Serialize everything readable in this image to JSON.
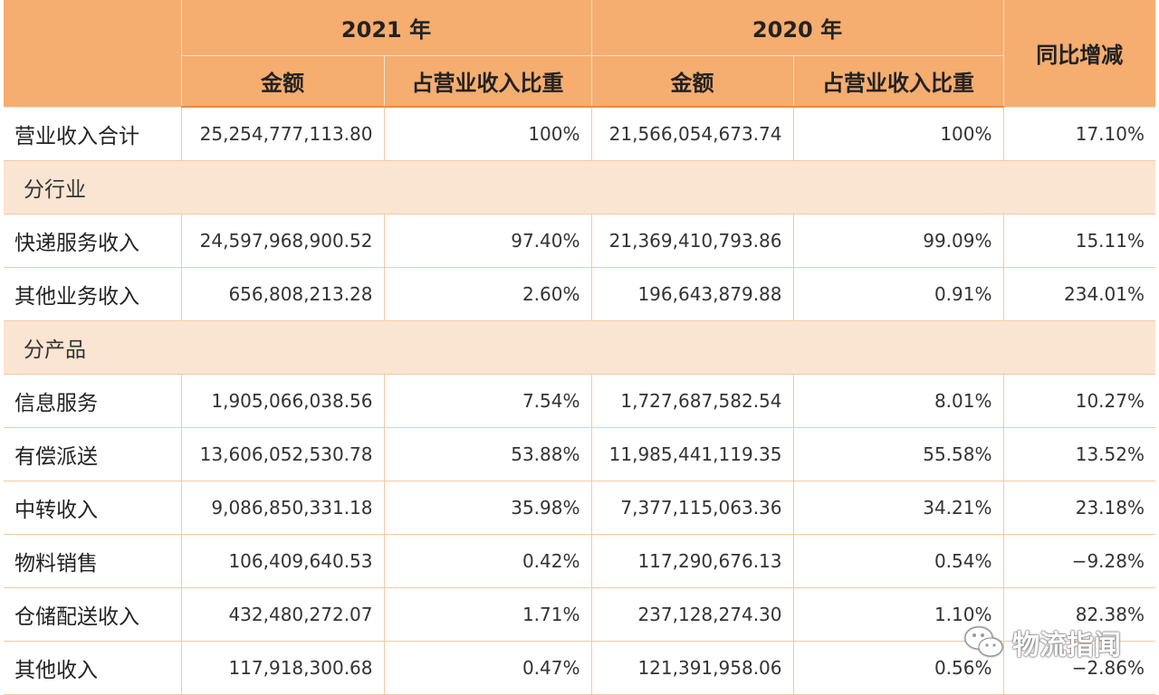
{
  "header": {
    "year_2021": "2021 年",
    "year_2020": "2020 年",
    "yoy": "同比增减",
    "amount": "金额",
    "share": "占营业收入比重"
  },
  "total": {
    "label": "营业收入合计",
    "amt2021": "25,254,777,113.80",
    "pct2021": "100%",
    "amt2020": "21,566,054,673.74",
    "pct2020": "100%",
    "yoy": "17.10%"
  },
  "sections": [
    {
      "title": "分行业",
      "rows": [
        {
          "label": "快递服务收入",
          "amt2021": "24,597,968,900.52",
          "pct2021": "97.40%",
          "amt2020": "21,369,410,793.86",
          "pct2020": "99.09%",
          "yoy": "15.11%"
        },
        {
          "label": "其他业务收入",
          "amt2021": "656,808,213.28",
          "pct2021": "2.60%",
          "amt2020": "196,643,879.88",
          "pct2020": "0.91%",
          "yoy": "234.01%"
        }
      ]
    },
    {
      "title": "分产品",
      "rows": [
        {
          "label": "信息服务",
          "amt2021": "1,905,066,038.56",
          "pct2021": "7.54%",
          "amt2020": "1,727,687,582.54",
          "pct2020": "8.01%",
          "yoy": "10.27%"
        },
        {
          "label": "有偿派送",
          "amt2021": "13,606,052,530.78",
          "pct2021": "53.88%",
          "amt2020": "11,985,441,119.35",
          "pct2020": "55.58%",
          "yoy": "13.52%"
        },
        {
          "label": "中转收入",
          "amt2021": "9,086,850,331.18",
          "pct2021": "35.98%",
          "amt2020": "7,377,115,063.36",
          "pct2020": "34.21%",
          "yoy": "23.18%"
        },
        {
          "label": "物料销售",
          "amt2021": "106,409,640.53",
          "pct2021": "0.42%",
          "amt2020": "117,290,676.13",
          "pct2020": "0.54%",
          "yoy": "−9.28%"
        },
        {
          "label": "仓储配送收入",
          "amt2021": "432,480,272.07",
          "pct2021": "1.71%",
          "amt2020": "237,128,274.30",
          "pct2020": "1.10%",
          "yoy": "82.38%"
        },
        {
          "label": "其他收入",
          "amt2021": "117,918,300.68",
          "pct2021": "0.47%",
          "amt2020": "121,391,958.06",
          "pct2020": "0.56%",
          "yoy": "−2.86%"
        }
      ]
    }
  ],
  "watermark": {
    "text": "物流指闻",
    "icon": "wechat-icon"
  }
}
